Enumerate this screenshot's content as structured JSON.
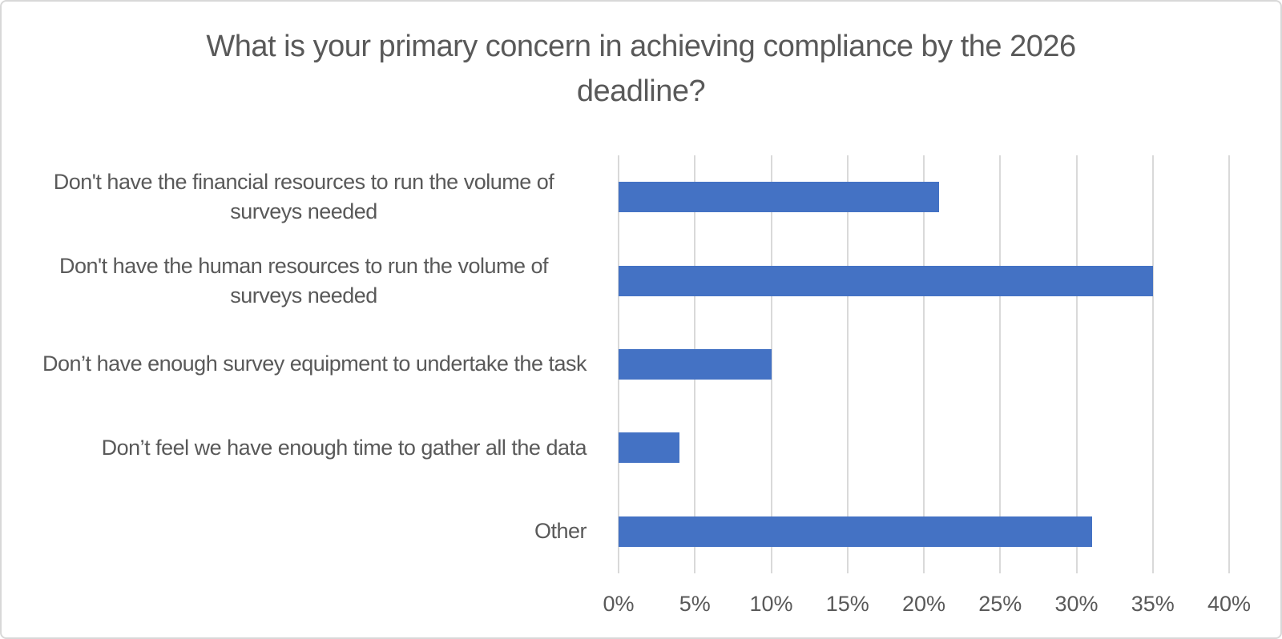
{
  "chart_data": {
    "type": "bar",
    "orientation": "horizontal",
    "title": "What is your primary concern in achieving compliance by the 2026 deadline?",
    "categories": [
      "Don't have the financial resources to run the volume of surveys needed",
      "Don't have the human resources to run the volume of surveys needed",
      "Don’t have enough survey equipment to undertake the task",
      "Don’t feel we have enough time to gather all the data",
      "Other"
    ],
    "values": [
      21,
      35,
      10,
      4,
      31
    ],
    "unit": "%",
    "xlabel": "",
    "ylabel": "",
    "xlim": [
      0,
      40
    ],
    "ticks": [
      0,
      5,
      10,
      15,
      20,
      25,
      30,
      35,
      40
    ],
    "tick_labels": [
      "0%",
      "5%",
      "10%",
      "15%",
      "20%",
      "25%",
      "30%",
      "35%",
      "40%"
    ],
    "grid": true,
    "legend": false,
    "colors": {
      "bar": "#4472C4",
      "gridline": "#D9D9D9",
      "text": "#595959",
      "frame_border": "#D8D8D8",
      "background": "#FFFFFF"
    }
  }
}
